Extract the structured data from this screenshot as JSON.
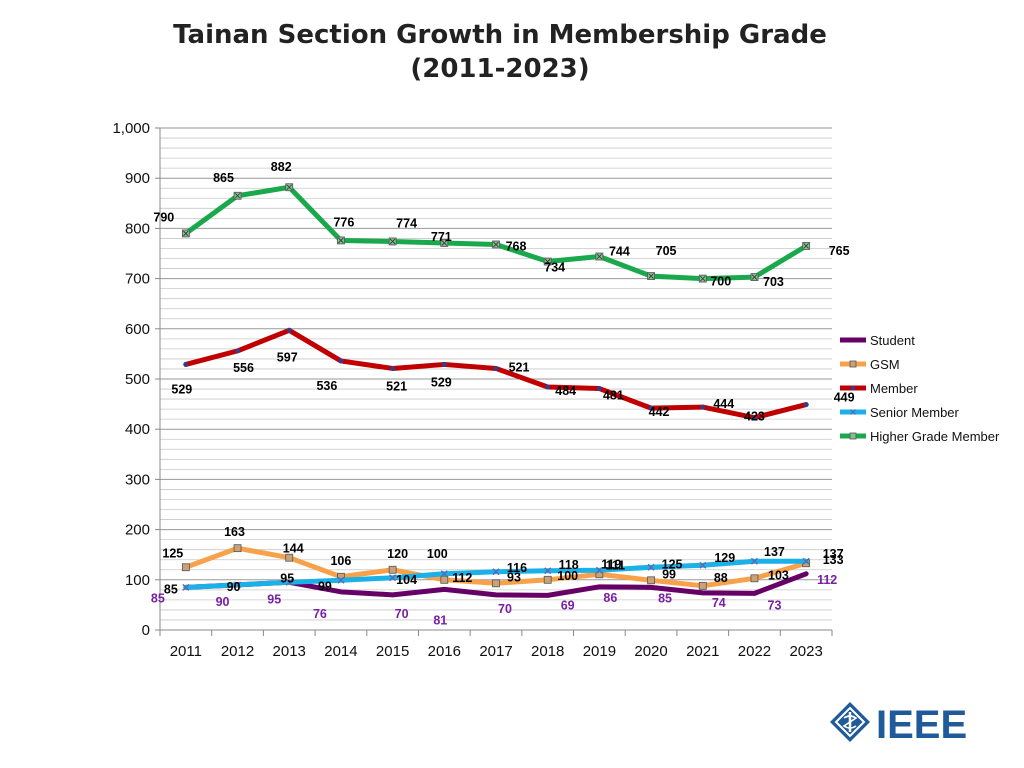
{
  "title_line1": "Tainan Section Growth in Membership Grade",
  "title_line2": "(2011-2023)",
  "logo_text": "IEEE",
  "chart_data": {
    "type": "line",
    "title": "Tainan Section Growth in Membership Grade (2011-2023)",
    "xlabel": "",
    "ylabel": "",
    "categories": [
      "2011",
      "2012",
      "2013",
      "2014",
      "2015",
      "2016",
      "2017",
      "2018",
      "2019",
      "2020",
      "2021",
      "2022",
      "2023"
    ],
    "ylim": [
      0,
      1000
    ],
    "yticks": [
      0,
      100,
      200,
      300,
      400,
      500,
      600,
      700,
      800,
      900,
      1000
    ],
    "ytick_labels": [
      "0",
      "100",
      "200",
      "300",
      "400",
      "500",
      "600",
      "700",
      "800",
      "900",
      "1,000"
    ],
    "grid": true,
    "legend_position": "right",
    "series": [
      {
        "name": "Student",
        "color": "#660066",
        "label_color": "#7a1fa2",
        "values": [
          85,
          90,
          95,
          76,
          70,
          81,
          70,
          69,
          86,
          85,
          74,
          73,
          112
        ]
      },
      {
        "name": "GSM",
        "color": "#f7a24b",
        "label_color": "#000000",
        "values": [
          125,
          163,
          144,
          106,
          120,
          100,
          93,
          100,
          111,
          99,
          88,
          103,
          133
        ]
      },
      {
        "name": "Member",
        "color": "#c00000",
        "label_color": "#000000",
        "values": [
          529,
          556,
          597,
          536,
          521,
          529,
          521,
          484,
          481,
          442,
          444,
          423,
          449
        ]
      },
      {
        "name": "Senior Member",
        "color": "#1ab0e8",
        "label_color": "#000000",
        "values": [
          85,
          90,
          95,
          99,
          104,
          112,
          116,
          118,
          119,
          125,
          129,
          137,
          137
        ]
      },
      {
        "name": "Higher Grade Member",
        "color": "#1aa84c",
        "label_color": "#000000",
        "values": [
          790,
          865,
          882,
          776,
          774,
          771,
          768,
          734,
          744,
          705,
          700,
          703,
          765
        ]
      }
    ]
  }
}
